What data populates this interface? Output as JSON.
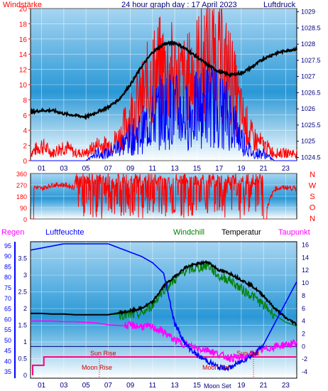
{
  "title": "24 hour graph day : 17 April 2023",
  "colors": {
    "wind": "#ff0000",
    "gust": "#0000ff",
    "pressure": "#000000",
    "humidity": "#0000ff",
    "windchill": "#008000",
    "temperature": "#000000",
    "dewpoint": "#ff00ff",
    "rain": "#ff0080",
    "sun_moon": "#cc0000",
    "axis_blue": "#000080",
    "plot_top": "#a6d5f2",
    "plot_mid": "#2a98d6",
    "plot_bottom": "#ffffff"
  },
  "x_ticks": [
    "01",
    "03",
    "05",
    "07",
    "09",
    "11",
    "13",
    "15",
    "17",
    "19",
    "21",
    "23"
  ],
  "chart_data": [
    {
      "type": "line",
      "name": "wind-pressure",
      "left_label": "Windstärke",
      "right_label": "Luftdruck",
      "left_ticks": [
        "20",
        "18",
        "16",
        "14",
        "12",
        "10",
        "8",
        "6",
        "4",
        "2",
        "0"
      ],
      "right_ticks": [
        "1029",
        "1028.5",
        "1028",
        "1027.5",
        "1027",
        "1026.5",
        "1026",
        "1025.5",
        "1025",
        "1024.5"
      ],
      "ylim_left": [
        0,
        20
      ],
      "ylim_right": [
        1024.4,
        1029.1
      ],
      "x": [
        0,
        1,
        2,
        3,
        4,
        5,
        6,
        7,
        8,
        9,
        10,
        11,
        12,
        13,
        14,
        15,
        16,
        17,
        18,
        19,
        20,
        21,
        22,
        23,
        24
      ],
      "series": [
        {
          "key": "wind",
          "values": [
            1,
            2,
            1,
            2,
            1,
            1,
            2,
            2,
            3,
            6,
            8,
            11,
            12,
            11,
            10,
            12,
            14,
            13,
            11,
            6,
            3,
            2,
            1,
            1,
            1
          ]
        },
        {
          "key": "gust",
          "values": [
            0,
            0,
            0,
            0,
            0,
            0,
            1,
            1,
            2,
            3,
            4,
            6,
            7,
            7,
            6,
            7,
            8,
            7,
            6,
            3,
            1,
            1,
            0,
            0,
            0
          ]
        },
        {
          "key": "pressure",
          "values": [
            1025.9,
            1025.95,
            1025.95,
            1025.85,
            1025.8,
            1025.75,
            1025.9,
            1026.05,
            1026.3,
            1026.75,
            1027.3,
            1027.75,
            1028.0,
            1028.05,
            1027.85,
            1027.6,
            1027.35,
            1027.15,
            1027.05,
            1027.1,
            1027.3,
            1027.55,
            1027.7,
            1027.8,
            1027.85
          ]
        }
      ]
    },
    {
      "type": "line",
      "name": "wind-direction",
      "left_ticks": [
        "360",
        "270",
        "180",
        "90",
        "0"
      ],
      "right_ticks": [
        "N",
        "W",
        "S",
        "O",
        "N"
      ],
      "ylim": [
        0,
        360
      ],
      "x": [
        0,
        1,
        2,
        3,
        4,
        5,
        6,
        7,
        8,
        9,
        10,
        11,
        12,
        13,
        14,
        15,
        16,
        17,
        18,
        19,
        20,
        21,
        22,
        23,
        24
      ],
      "series": [
        {
          "key": "wind",
          "values": [
            260,
            240,
            270,
            270,
            250,
            270,
            230,
            260,
            200,
            250,
            220,
            180,
            210,
            240,
            190,
            230,
            220,
            200,
            240,
            210,
            150,
            30,
            240,
            250,
            240
          ]
        }
      ]
    },
    {
      "type": "line",
      "name": "temperature-humidity-rain",
      "top_labels": [
        "Regen",
        "Luftfeuchte",
        "Windchill",
        "Temperatur",
        "Taupunkt"
      ],
      "humidity_ticks": [
        "95",
        "90",
        "85",
        "80",
        "75",
        "70",
        "65",
        "60",
        "55",
        "50",
        "45",
        "40",
        "35"
      ],
      "rain_ticks": [
        "3.5",
        "3",
        "2.5",
        "2",
        "1.5",
        "1",
        "0.5",
        "0"
      ],
      "temp_ticks": [
        "16",
        "14",
        "12",
        "10",
        "8",
        "6",
        "4",
        "2",
        "0",
        "-2",
        "-4"
      ],
      "ylim_humidity": [
        32,
        97
      ],
      "ylim_rain": [
        0,
        4
      ],
      "ylim_temp": [
        -5,
        16.5
      ],
      "annotations": [
        "Sun Rise",
        "Sun Set",
        "Moon Rise",
        "Moon Set",
        "Moon Set"
      ],
      "x": [
        0,
        1,
        2,
        3,
        4,
        5,
        6,
        7,
        8,
        9,
        10,
        11,
        12,
        13,
        14,
        15,
        16,
        17,
        18,
        19,
        20,
        21,
        22,
        23,
        24
      ],
      "series": [
        {
          "key": "humidity",
          "values": [
            93,
            94,
            95,
            96,
            96,
            96,
            96,
            96,
            94,
            92,
            90,
            87,
            82,
            58,
            48,
            43,
            40,
            37,
            37,
            40,
            43,
            48,
            58,
            68,
            78
          ]
        },
        {
          "key": "temperature",
          "values": [
            5.2,
            5.2,
            5.1,
            5.1,
            5.0,
            5.0,
            5.0,
            5.0,
            5.3,
            5.6,
            6.0,
            7.0,
            9.5,
            11.0,
            12.5,
            13.0,
            13.3,
            12.0,
            11.5,
            10.5,
            9.5,
            8.0,
            6.0,
            4.5,
            3.5
          ]
        },
        {
          "key": "windchill",
          "values": [
            5.2,
            5.2,
            5.1,
            5.1,
            5.0,
            5.0,
            5.0,
            5.0,
            5.1,
            4.9,
            5.1,
            6.5,
            9.0,
            10.5,
            12.0,
            12.3,
            12.8,
            11.0,
            10.5,
            9.0,
            8.0,
            6.5,
            5.0,
            3.8,
            3.2
          ]
        },
        {
          "key": "dewpoint",
          "values": [
            4.0,
            4.0,
            4.0,
            3.9,
            3.9,
            3.8,
            3.7,
            3.4,
            3.3,
            3.3,
            3.2,
            3.0,
            2.3,
            1.0,
            0.3,
            -0.3,
            -0.5,
            -1.3,
            -1.8,
            -1.8,
            -1.2,
            -0.5,
            0.0,
            0.3,
            0.5
          ]
        },
        {
          "key": "rain",
          "values": [
            0,
            0.3,
            0.3,
            0.3,
            0.3,
            0.3,
            0.3,
            0.3,
            0.3,
            0.3,
            0.3,
            0.3,
            0.3,
            0.3,
            0.3,
            0.3,
            0.3,
            0.3,
            0.3,
            0.3,
            0.3,
            0.3,
            0.3,
            0.3,
            0.3
          ]
        }
      ]
    }
  ]
}
